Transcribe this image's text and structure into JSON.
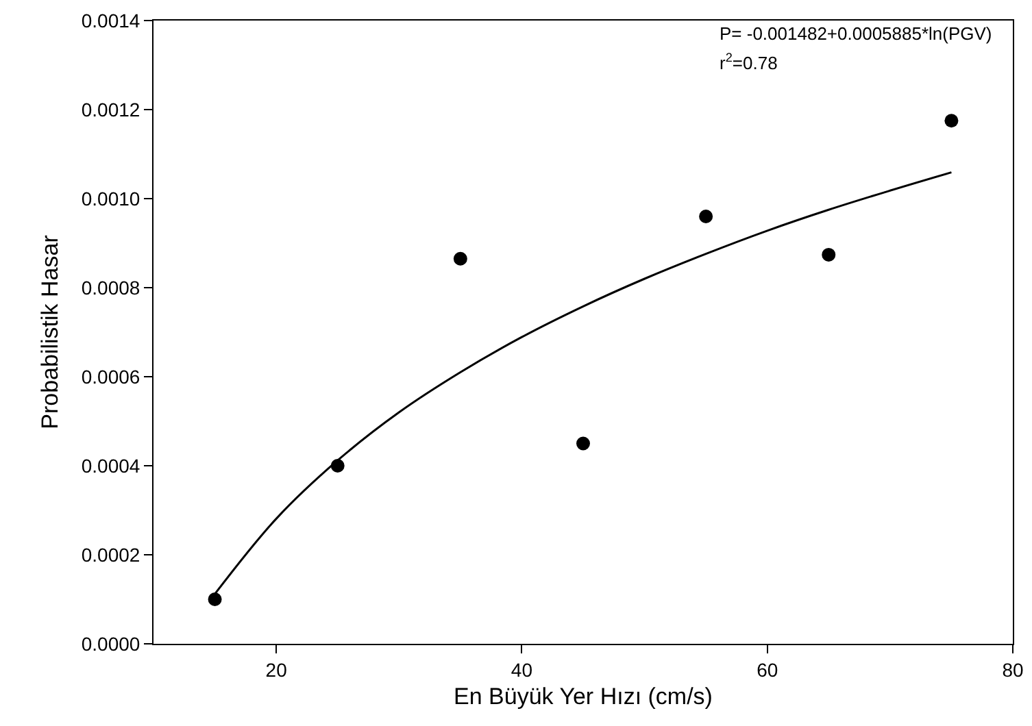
{
  "chart_data": {
    "type": "scatter",
    "xlabel": "En Büyük Yer Hızı (cm/s)",
    "ylabel": "Probabilistik Hasar",
    "annotations": [
      "P= -0.001482+0.0005885*ln(PGV)",
      "r$^{2}$=0.78"
    ],
    "x": [
      15,
      25,
      35,
      45,
      55,
      65,
      75
    ],
    "series": [
      {
        "color": "#000000",
        "marker": "circle",
        "values": [
          0.0001,
          0.0004,
          0.000865,
          0.00045,
          0.00096,
          0.000874,
          0.001175
        ]
      },
      {
        "type": "line",
        "color": "#000000",
        "marker": "none",
        "line_style": "solid",
        "x": [
          15,
          20,
          25,
          30,
          35,
          40,
          45,
          50,
          55,
          60,
          65,
          70,
          75
        ],
        "values": [
          0.000112,
          0.000281,
          0.000412,
          0.00052,
          0.00061,
          0.000689,
          0.000758,
          0.00082,
          0.000876,
          0.000928,
          0.000975,
          0.001018,
          0.001059
        ]
      }
    ],
    "xlim": [
      10,
      80
    ],
    "xticks": [
      20,
      40,
      60,
      80
    ],
    "ylim": [
      0,
      0.0014
    ],
    "yticks": [
      {
        "value": 0,
        "label": "0.0000"
      },
      {
        "value": 0.0002,
        "label": "0.0002"
      },
      {
        "value": 0.0004,
        "label": "0.0004"
      },
      {
        "value": 0.0006,
        "label": "0.0006"
      },
      {
        "value": 0.0008,
        "label": "0.0008"
      },
      {
        "value": 0.001,
        "label": "0.0010"
      },
      {
        "value": 0.0012,
        "label": "0.0012"
      },
      {
        "value": 0.0014,
        "label": "0.0014"
      }
    ],
    "grid": false
  }
}
